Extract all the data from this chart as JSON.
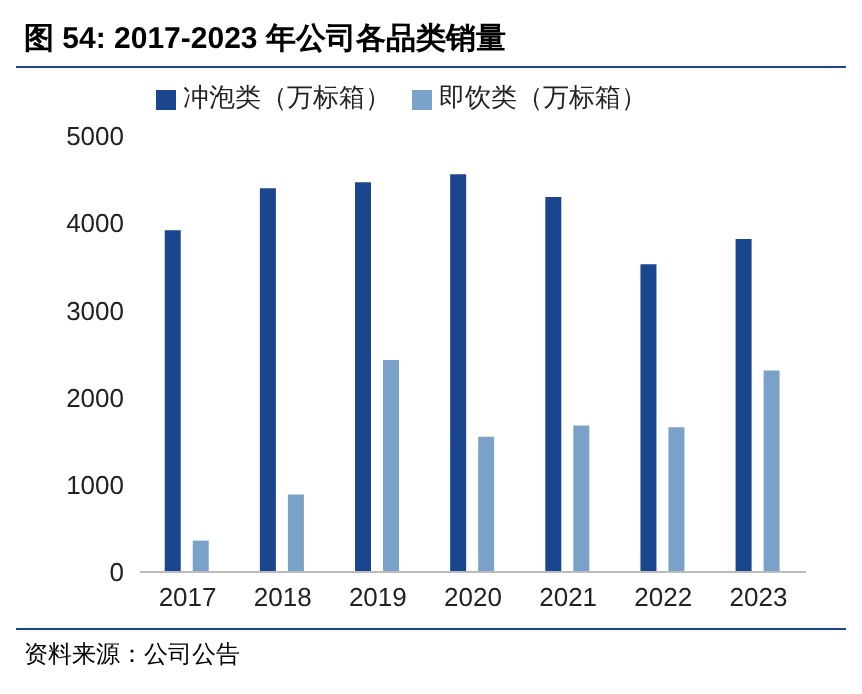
{
  "chart_data": {
    "type": "bar",
    "title": "图 54:  2017-2023 年公司各品类销量",
    "categories": [
      "2017",
      "2018",
      "2019",
      "2020",
      "2021",
      "2022",
      "2023"
    ],
    "series": [
      {
        "name": "冲泡类（万标箱）",
        "color": "#1a4690",
        "values": [
          3920,
          4400,
          4470,
          4560,
          4300,
          3530,
          3820
        ]
      },
      {
        "name": "即饮类（万标箱）",
        "color": "#7aa1c7",
        "values": [
          360,
          890,
          2430,
          1550,
          1680,
          1660,
          2310
        ]
      }
    ],
    "ylim": [
      0,
      5000
    ],
    "yticks": [
      0,
      1000,
      2000,
      3000,
      4000,
      5000
    ],
    "grid": false,
    "legend": "top",
    "annotations": [
      "资料来源：公司公告"
    ]
  }
}
